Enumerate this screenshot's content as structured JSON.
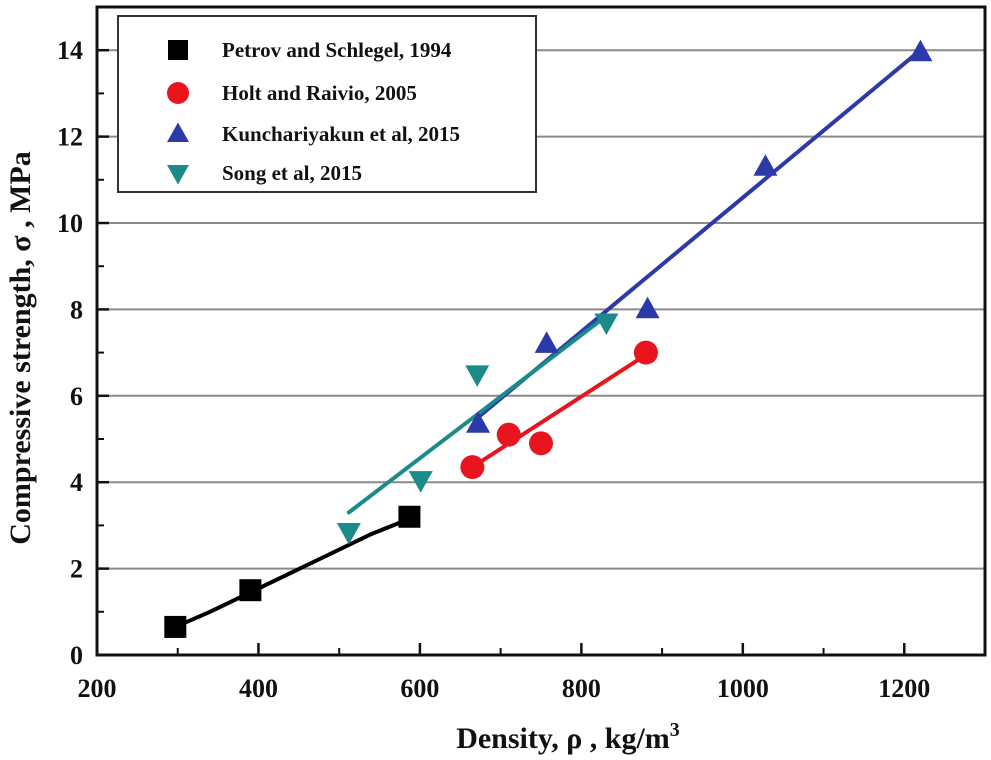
{
  "chart_data": {
    "type": "scatter",
    "xlabel": "Density, ρ  , kg/m",
    "xlabel_sup": "3",
    "ylabel": "Compressive strength, σ  , MPa",
    "xlim": [
      200,
      1300
    ],
    "ylim": [
      0,
      15
    ],
    "xticks": [
      200,
      400,
      600,
      800,
      1000,
      1200
    ],
    "yticks": [
      0,
      2,
      4,
      6,
      8,
      10,
      12,
      14
    ],
    "grid": "horizontal",
    "legend_position": "top-left",
    "series": [
      {
        "name": "Petrov and Schlegel, 1994",
        "marker": "square",
        "color": "#000000",
        "points": [
          [
            297,
            0.65
          ],
          [
            390,
            1.5
          ],
          [
            587,
            3.2
          ]
        ],
        "fit_line": [
          [
            297,
            0.65
          ],
          [
            340,
            1.0
          ],
          [
            390,
            1.45
          ],
          [
            440,
            1.9
          ],
          [
            490,
            2.35
          ],
          [
            540,
            2.8
          ],
          [
            587,
            3.15
          ]
        ]
      },
      {
        "name": "Holt and Raivio, 2005",
        "marker": "circle",
        "color": "#e8141e",
        "points": [
          [
            665,
            4.35
          ],
          [
            710,
            5.1
          ],
          [
            750,
            4.9
          ],
          [
            880,
            7.0
          ]
        ],
        "fit_line": [
          [
            665,
            4.35
          ],
          [
            880,
            6.95
          ]
        ]
      },
      {
        "name": "Kunchariyakun et al, 2015",
        "marker": "triangle-up",
        "color": "#2b3aa8",
        "points": [
          [
            672,
            5.35
          ],
          [
            757,
            7.2
          ],
          [
            882,
            8.0
          ],
          [
            1028,
            11.3
          ],
          [
            1220,
            13.95
          ]
        ],
        "fit_line": [
          [
            672,
            5.5
          ],
          [
            1220,
            14.0
          ]
        ]
      },
      {
        "name": "Song et al, 2015",
        "marker": "triangle-down",
        "color": "#1a8a8a",
        "points": [
          [
            512,
            2.85
          ],
          [
            601,
            4.05
          ],
          [
            671,
            6.5
          ],
          [
            831,
            7.7
          ]
        ],
        "fit_line": [
          [
            512,
            3.3
          ],
          [
            831,
            7.85
          ]
        ]
      }
    ]
  }
}
